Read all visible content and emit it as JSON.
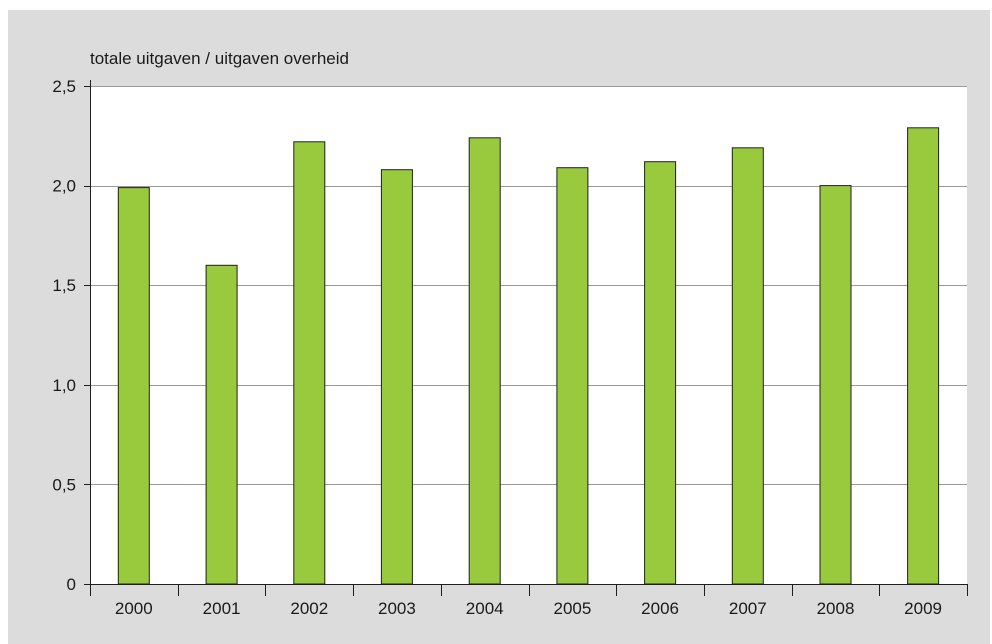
{
  "colors": {
    "panel_background": "#dcdcdc",
    "plot_background": "#ffffff",
    "bar_fill": "#99c93c",
    "bar_stroke": "#1f1f1f",
    "gridline": "#9a9a9a",
    "axis": "#1f1f1f"
  },
  "chart_data": {
    "type": "bar",
    "title": "",
    "xlabel": "",
    "ylabel": "totale uitgaven / uitgaven overheid",
    "categories": [
      "2000",
      "2001",
      "2002",
      "2003",
      "2004",
      "2005",
      "2006",
      "2007",
      "2008",
      "2009"
    ],
    "values": [
      1.99,
      1.6,
      2.22,
      2.08,
      2.24,
      2.09,
      2.12,
      2.19,
      2.0,
      2.29
    ],
    "ylim": [
      0,
      2.5
    ],
    "yticks": [
      0,
      0.5,
      1.0,
      1.5,
      2.0,
      2.5
    ],
    "ytick_labels": [
      "0",
      "0,5",
      "1,0",
      "1,5",
      "2,0",
      "2,5"
    ],
    "grid": true,
    "legend": "none"
  }
}
